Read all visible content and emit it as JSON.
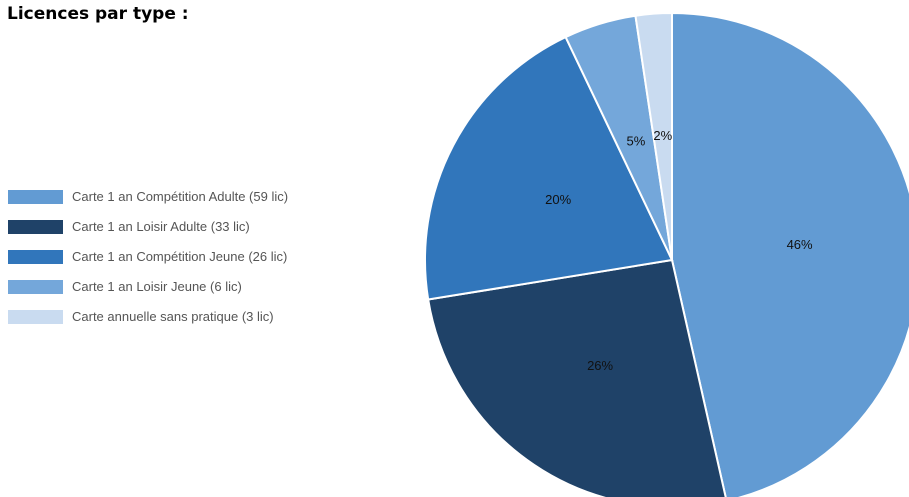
{
  "page_title": "Licences par type :",
  "chart_data": {
    "type": "pie",
    "title": "",
    "slices": [
      {
        "label": "Carte 1 an Compétition Adulte (59 lic)",
        "value": 59,
        "percent_label": "46%",
        "color": "#629bd3"
      },
      {
        "label": "Carte 1 an Loisir Adulte (33 lic)",
        "value": 33,
        "percent_label": "26%",
        "color": "#1f4268"
      },
      {
        "label": "Carte 1 an Compétition Jeune (26 lic)",
        "value": 26,
        "percent_label": "20%",
        "color": "#3176bb"
      },
      {
        "label": "Carte 1 an Loisir Jeune (6 lic)",
        "value": 6,
        "percent_label": "5%",
        "color": "#74a7da"
      },
      {
        "label": "Carte annuelle sans pratique (3 lic)",
        "value": 3,
        "percent_label": "2%",
        "color": "#c9dbf0"
      }
    ],
    "legend_position": "left",
    "start_angle": "top",
    "direction": "clockwise"
  }
}
